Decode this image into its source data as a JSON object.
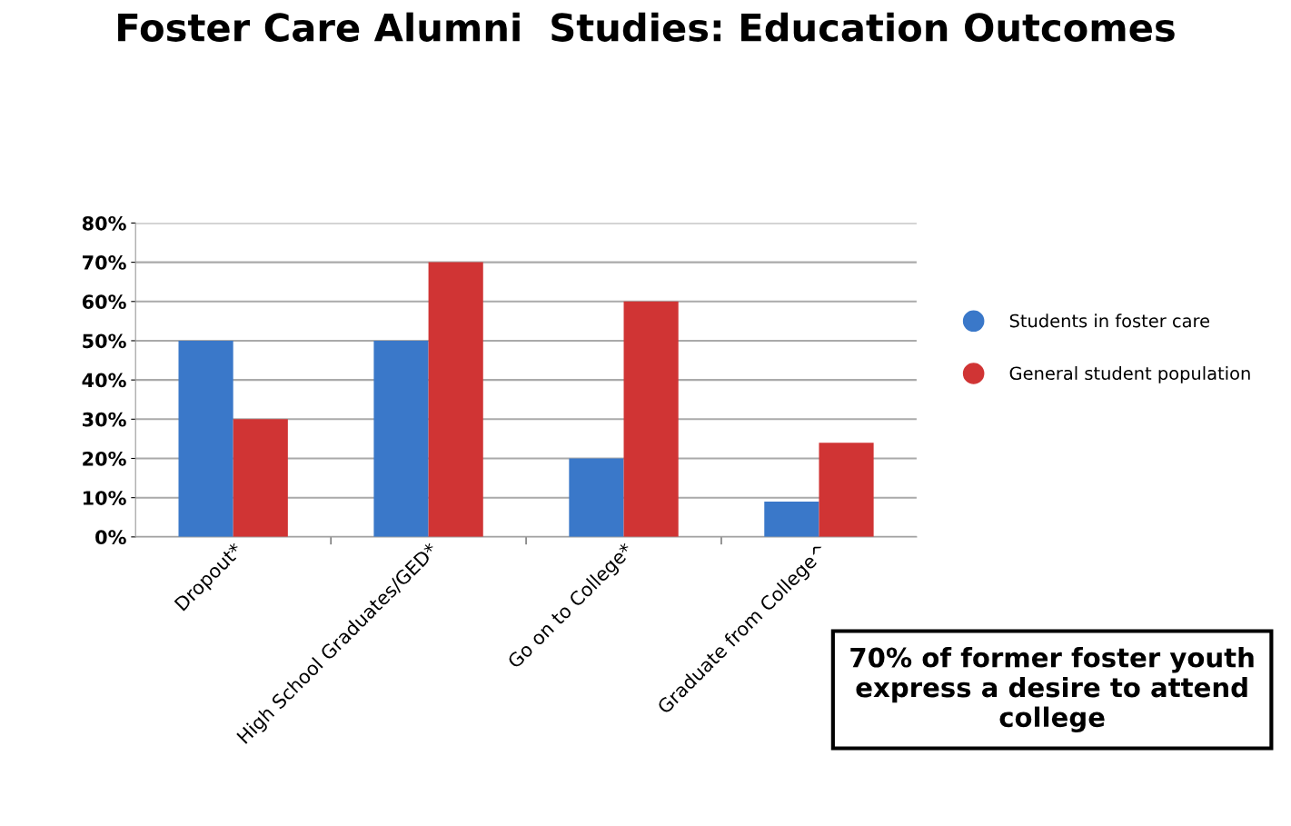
{
  "chart_data": {
    "type": "bar",
    "title": "Foster Care Alumni  Studies: Education Outcomes",
    "categories": [
      "Dropout*",
      "High School Graduates/GED*",
      "Go on to College*",
      "Graduate from College^"
    ],
    "series": [
      {
        "name": "Students in foster care",
        "color": "#3a78c9",
        "values": [
          50,
          50,
          20,
          9
        ]
      },
      {
        "name": "General student population",
        "color": "#d03434",
        "values": [
          30,
          70,
          60,
          24
        ]
      }
    ],
    "ylim": [
      0,
      80
    ],
    "yticks": [
      {
        "value": 0,
        "label": "0%"
      },
      {
        "value": 10,
        "label": "10%"
      },
      {
        "value": 20,
        "label": "20%"
      },
      {
        "value": 30,
        "label": "30%"
      },
      {
        "value": 40,
        "label": "40%"
      },
      {
        "value": 50,
        "label": "50%"
      },
      {
        "value": 60,
        "label": "60%"
      },
      {
        "value": 70,
        "label": "70%"
      },
      {
        "value": 80,
        "label": "80%"
      }
    ],
    "grid": "y",
    "legend": "right",
    "annotations": [
      "70% of former foster youth express a desire to attend college"
    ]
  }
}
